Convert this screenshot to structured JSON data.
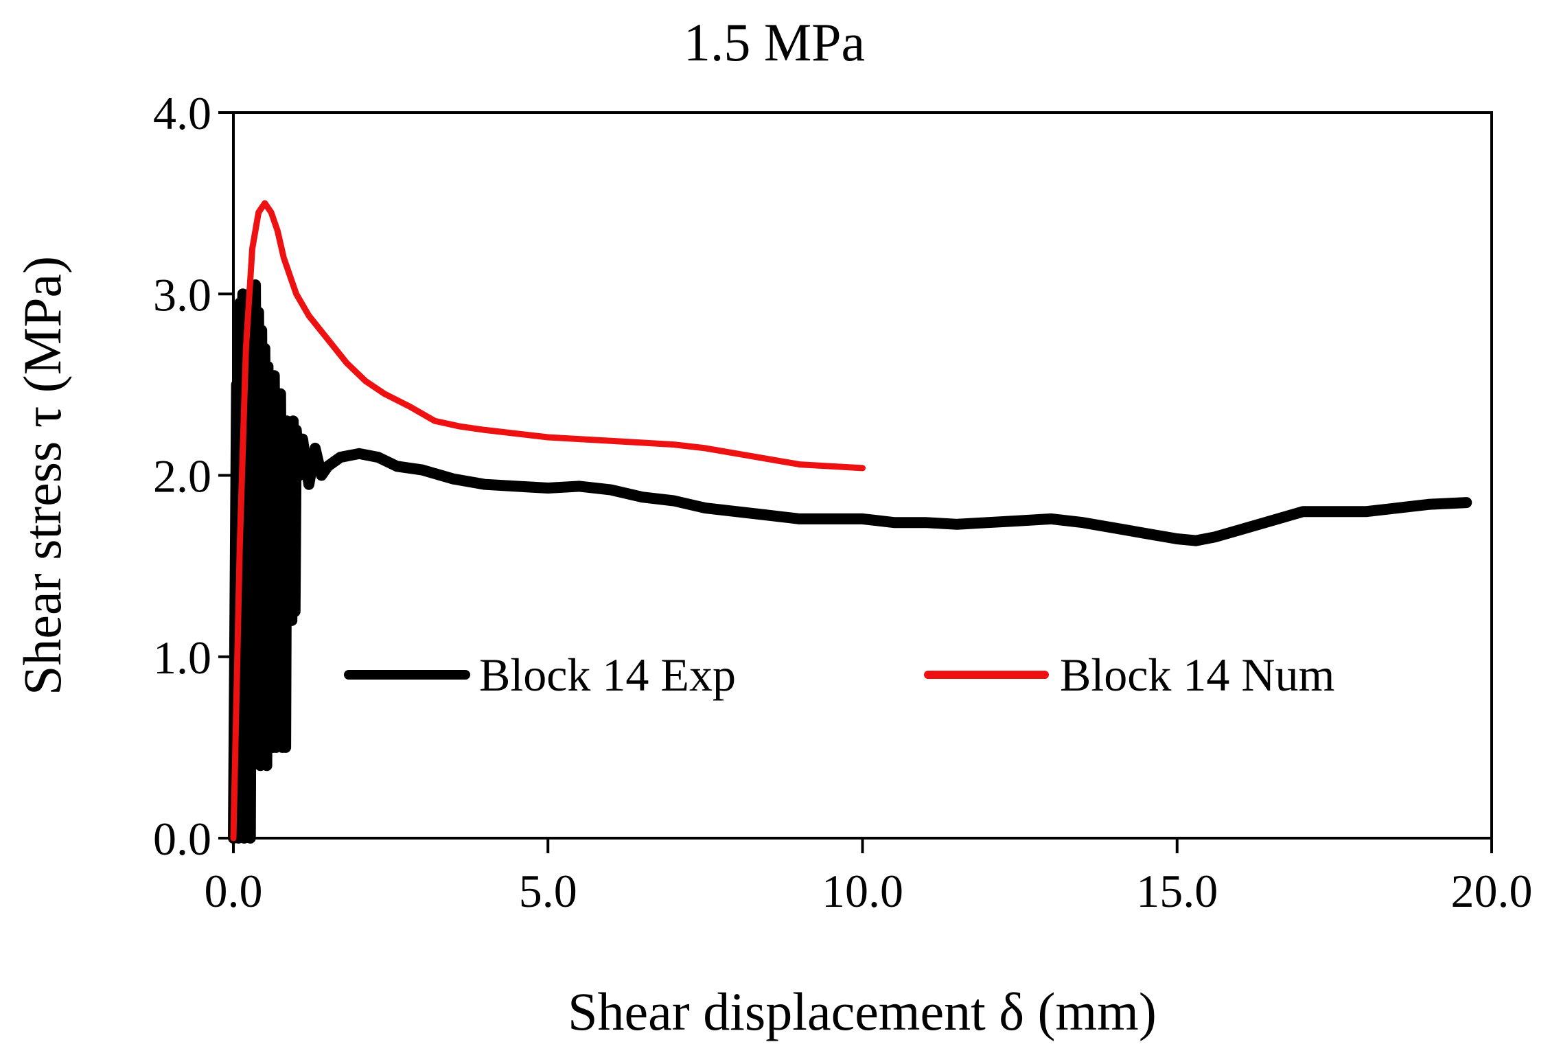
{
  "chart_data": {
    "type": "line",
    "title": "1.5 MPa",
    "xlabel": "Shear displacement δ (mm)",
    "ylabel": "Shear stress τ (MPa)",
    "xlim": [
      0,
      20
    ],
    "ylim": [
      0,
      4
    ],
    "xticks": [
      0,
      5,
      10,
      15,
      20
    ],
    "yticks": [
      0,
      1,
      2,
      3,
      4
    ],
    "xtick_labels": [
      "0.0",
      "5.0",
      "10.0",
      "15.0",
      "20.0"
    ],
    "ytick_labels": [
      "0.0",
      "1.0",
      "2.0",
      "3.0",
      "4.0"
    ],
    "grid": false,
    "legend_position": "center",
    "series": [
      {
        "name": "Block 14 Exp",
        "color": "#000000",
        "style": "thick-noisy",
        "x": [
          0.0,
          0.05,
          0.08,
          0.1,
          0.13,
          0.15,
          0.17,
          0.2,
          0.22,
          0.25,
          0.27,
          0.3,
          0.33,
          0.35,
          0.38,
          0.4,
          0.43,
          0.45,
          0.48,
          0.5,
          0.53,
          0.55,
          0.58,
          0.6,
          0.63,
          0.65,
          0.68,
          0.7,
          0.73,
          0.75,
          0.78,
          0.8,
          0.83,
          0.85,
          0.88,
          0.9,
          0.93,
          0.95,
          0.98,
          1.0,
          1.05,
          1.1,
          1.2,
          1.3,
          1.4,
          1.5,
          1.7,
          2.0,
          2.3,
          2.6,
          3.0,
          3.5,
          4.0,
          4.5,
          5.0,
          5.5,
          6.0,
          6.5,
          7.0,
          7.5,
          8.0,
          8.5,
          9.0,
          9.5,
          10.0,
          10.5,
          11.0,
          11.5,
          12.0,
          12.5,
          13.0,
          13.5,
          14.0,
          14.5,
          15.0,
          15.3,
          15.6,
          16.0,
          16.5,
          17.0,
          17.5,
          18.0,
          18.5,
          19.0,
          19.6
        ],
        "y": [
          0.0,
          2.5,
          0.0,
          2.95,
          0.1,
          3.0,
          0.0,
          2.9,
          0.05,
          3.0,
          0.0,
          2.95,
          1.0,
          3.05,
          0.6,
          2.9,
          0.4,
          2.8,
          0.5,
          2.7,
          0.4,
          2.6,
          0.6,
          2.5,
          0.5,
          2.55,
          0.5,
          2.35,
          0.6,
          2.45,
          0.5,
          2.3,
          0.5,
          2.3,
          1.3,
          2.25,
          1.2,
          2.3,
          1.25,
          2.25,
          2.0,
          2.2,
          1.95,
          2.15,
          2.0,
          2.05,
          2.1,
          2.12,
          2.1,
          2.05,
          2.03,
          1.98,
          1.95,
          1.94,
          1.93,
          1.94,
          1.92,
          1.88,
          1.86,
          1.82,
          1.8,
          1.78,
          1.76,
          1.76,
          1.76,
          1.74,
          1.74,
          1.73,
          1.74,
          1.75,
          1.76,
          1.74,
          1.71,
          1.68,
          1.65,
          1.64,
          1.66,
          1.7,
          1.75,
          1.8,
          1.8,
          1.8,
          1.82,
          1.84,
          1.85
        ]
      },
      {
        "name": "Block 14 Num",
        "color": "#ee1111",
        "style": "smooth",
        "x": [
          0.0,
          0.1,
          0.2,
          0.3,
          0.4,
          0.5,
          0.6,
          0.7,
          0.8,
          1.0,
          1.2,
          1.5,
          1.8,
          2.1,
          2.4,
          2.8,
          3.2,
          3.6,
          4.0,
          5.0,
          6.0,
          7.0,
          7.5,
          8.0,
          8.5,
          9.0,
          9.5,
          10.0
        ],
        "y": [
          0.0,
          1.6,
          2.7,
          3.25,
          3.45,
          3.5,
          3.45,
          3.35,
          3.2,
          3.0,
          2.88,
          2.75,
          2.62,
          2.52,
          2.45,
          2.38,
          2.3,
          2.27,
          2.25,
          2.21,
          2.19,
          2.17,
          2.15,
          2.12,
          2.09,
          2.06,
          2.05,
          2.04
        ]
      }
    ]
  }
}
